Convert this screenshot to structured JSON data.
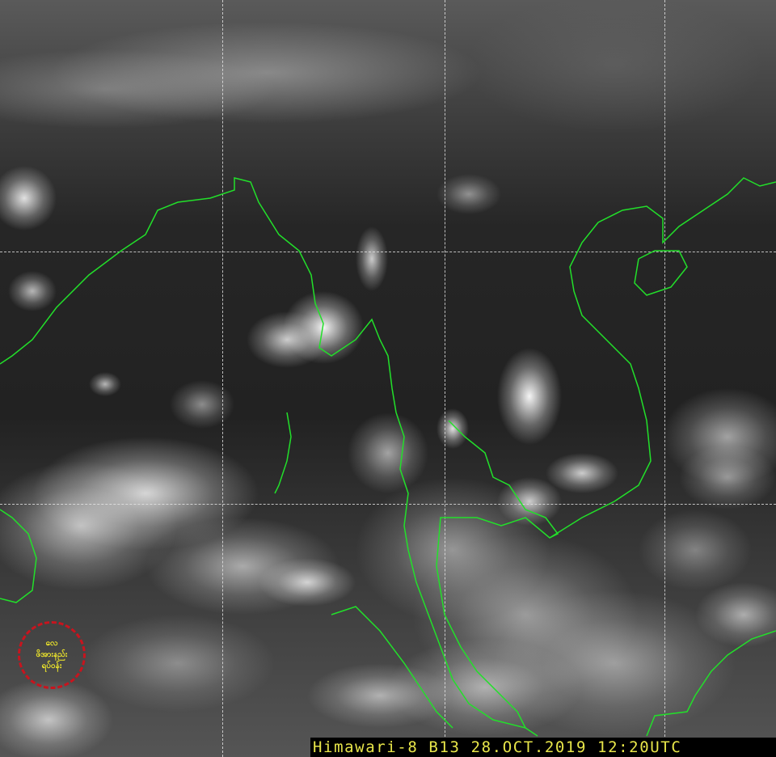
{
  "image": {
    "caption": "Himawari-8 B13 28.OCT.2019 12:20UTC",
    "coastline_color": "#22e02a",
    "grid_color": "#e6e6e6",
    "caption_color": "#e8e64a"
  },
  "logo": {
    "lines": [
      "လေ",
      "ဖိအားနည်း",
      "ရပ်ဝန်း"
    ],
    "ring_color": "#c8141e",
    "text_color": "#f2ea2a"
  }
}
